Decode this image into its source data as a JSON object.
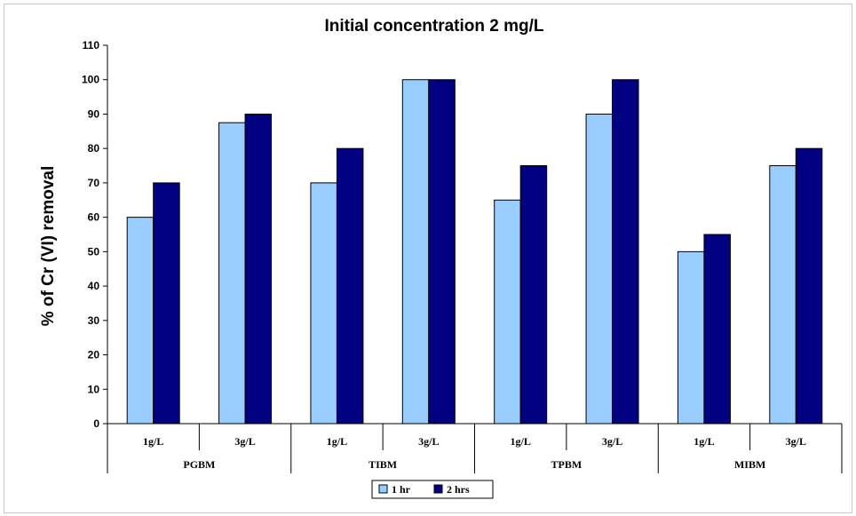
{
  "chart_data": {
    "type": "bar",
    "title": "Initial concentration 2 mg/L",
    "ylabel": "% of Cr (VI) removal",
    "xlabel": "",
    "ylim": [
      0,
      110
    ],
    "yticks": [
      0,
      10,
      20,
      30,
      40,
      50,
      60,
      70,
      80,
      90,
      100,
      110
    ],
    "groups": [
      "PGBM",
      "TIBM",
      "TPBM",
      "MIBM"
    ],
    "categories": [
      "1g/L",
      "3g/L",
      "1g/L",
      "3g/L",
      "1g/L",
      "3g/L",
      "1g/L",
      "3g/L"
    ],
    "series": [
      {
        "name": "1 hr",
        "color": "#99ccff",
        "values": [
          60,
          87.5,
          70,
          100,
          65,
          90,
          50,
          75
        ]
      },
      {
        "name": "2 hrs",
        "color": "#000080",
        "values": [
          70,
          90,
          80,
          100,
          75,
          100,
          55,
          80
        ]
      }
    ],
    "grid": false,
    "legend_position": "bottom"
  }
}
